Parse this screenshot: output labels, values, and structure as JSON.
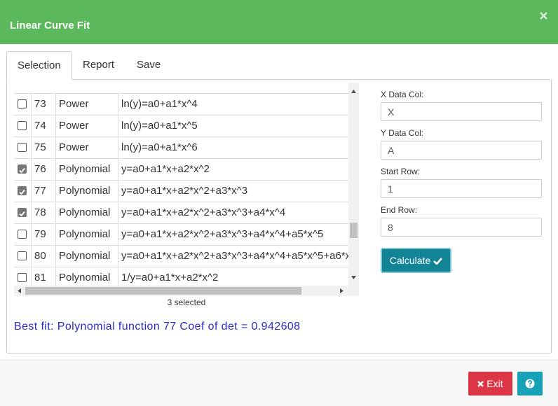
{
  "header": {
    "title": "Linear Curve Fit"
  },
  "tabs": [
    "Selection",
    "Report",
    "Save"
  ],
  "table": {
    "rows": [
      {
        "checked": false,
        "number": 73,
        "type": "Power",
        "formula": "ln(y)=a0+a1*x^4"
      },
      {
        "checked": false,
        "number": 74,
        "type": "Power",
        "formula": "ln(y)=a0+a1*x^5"
      },
      {
        "checked": false,
        "number": 75,
        "type": "Power",
        "formula": "ln(y)=a0+a1*x^6"
      },
      {
        "checked": true,
        "number": 76,
        "type": "Polynomial",
        "formula": "y=a0+a1*x+a2*x^2"
      },
      {
        "checked": true,
        "number": 77,
        "type": "Polynomial",
        "formula": "y=a0+a1*x+a2*x^2+a3*x^3"
      },
      {
        "checked": true,
        "number": 78,
        "type": "Polynomial",
        "formula": "y=a0+a1*x+a2*x^2+a3*x^3+a4*x^4"
      },
      {
        "checked": false,
        "number": 79,
        "type": "Polynomial",
        "formula": "y=a0+a1*x+a2*x^2+a3*x^3+a4*x^4+a5*x^5"
      },
      {
        "checked": false,
        "number": 80,
        "type": "Polynomial",
        "formula": "y=a0+a1*x+a2*x^2+a3*x^3+a4*x^4+a5*x^5+a6*x"
      },
      {
        "checked": false,
        "number": 81,
        "type": "Polynomial",
        "formula": "1/y=a0+a1*x+a2*x^2"
      }
    ],
    "status": "3 selected"
  },
  "result": "Best fit: Polynomial function 77 Coef of det = 0.942608",
  "form": {
    "fields": [
      {
        "label": "X Data Col:",
        "value": "X"
      },
      {
        "label": "Y Data Col:",
        "value": "A"
      },
      {
        "label": "Start Row:",
        "value": "1"
      },
      {
        "label": "End Row:",
        "value": "8"
      }
    ],
    "button": "Calculate"
  },
  "footer": {
    "exit": "Exit"
  }
}
